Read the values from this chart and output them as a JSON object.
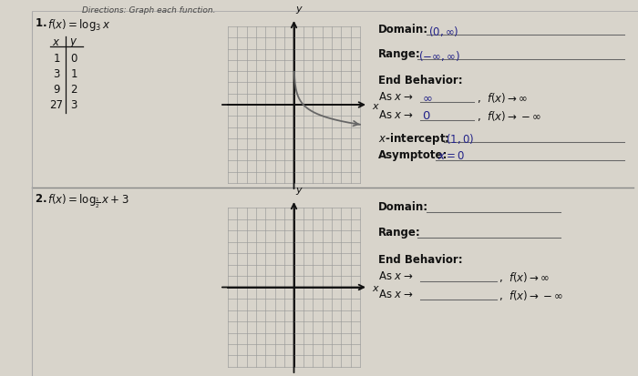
{
  "bg_color": "#d8d4cb",
  "bg_color2": "#cdc9c0",
  "header_text": "Directions: Graph each function.",
  "problem1": {
    "label": "1.",
    "func_text": "$f(x) = \\log_3 x$",
    "table_rows": [
      [
        "1",
        "0"
      ],
      [
        "3",
        "1"
      ],
      [
        "9",
        "2"
      ],
      [
        "27",
        "3"
      ]
    ],
    "domain_answer": "$(0,\\infty)$",
    "range_answer": "$(-\\infty,\\infty)$",
    "end1_answer": "$\\infty$",
    "end2_answer": "$0$",
    "xint_answer": "$(1,0)$",
    "asymptote_answer": "$x=0$"
  },
  "problem2": {
    "label": "2.",
    "func_text": "$f(x) = \\log_{\\frac{1}{2}} x + 3$"
  },
  "grid_color": "#999999",
  "axis_color": "#111111",
  "curve_color": "#666666",
  "text_color": "#111111",
  "bold_text_color": "#111111",
  "answer_color": "#222288",
  "line_color": "#555555",
  "divider_color": "#888888"
}
